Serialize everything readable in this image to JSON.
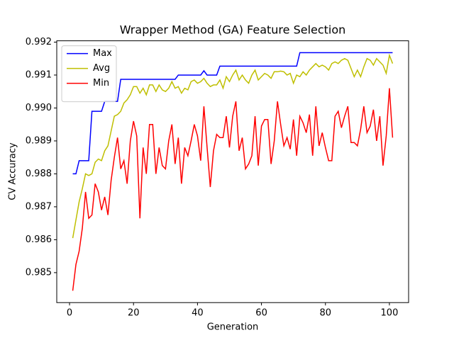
{
  "chart_data": {
    "type": "line",
    "title": "Wrapper Method (GA) Feature Selection",
    "x_label": "Generation",
    "y_label": "CV Accuracy",
    "x": [
      1,
      2,
      3,
      4,
      5,
      6,
      7,
      8,
      9,
      10,
      11,
      12,
      13,
      14,
      15,
      16,
      17,
      18,
      19,
      20,
      21,
      22,
      23,
      24,
      25,
      26,
      27,
      28,
      29,
      30,
      31,
      32,
      33,
      34,
      35,
      36,
      37,
      38,
      39,
      40,
      41,
      42,
      43,
      44,
      45,
      46,
      47,
      48,
      49,
      50,
      51,
      52,
      53,
      54,
      55,
      56,
      57,
      58,
      59,
      60,
      61,
      62,
      63,
      64,
      65,
      66,
      67,
      68,
      69,
      70,
      71,
      72,
      73,
      74,
      75,
      76,
      77,
      78,
      79,
      80,
      81,
      82,
      83,
      84,
      85,
      86,
      87,
      88,
      89,
      90,
      91,
      92,
      93,
      94,
      95,
      96,
      97,
      98,
      99,
      100,
      101
    ],
    "series": [
      {
        "name": "Max",
        "color": "#0000ff",
        "values": [
          0.988,
          0.988,
          0.9884,
          0.9884,
          0.9884,
          0.9884,
          0.9899,
          0.9899,
          0.9899,
          0.9899,
          0.9902,
          0.9902,
          0.9902,
          0.9902,
          0.9902,
          0.99087,
          0.99087,
          0.99087,
          0.99087,
          0.99087,
          0.99087,
          0.99087,
          0.99087,
          0.99087,
          0.99087,
          0.99087,
          0.99087,
          0.99087,
          0.99087,
          0.99087,
          0.99087,
          0.99087,
          0.99087,
          0.991,
          0.991,
          0.991,
          0.991,
          0.991,
          0.991,
          0.991,
          0.991,
          0.99113,
          0.991,
          0.991,
          0.991,
          0.991,
          0.99127,
          0.99127,
          0.99127,
          0.99127,
          0.99127,
          0.99127,
          0.99127,
          0.99127,
          0.99127,
          0.99127,
          0.99127,
          0.99127,
          0.99127,
          0.99127,
          0.99127,
          0.99127,
          0.99127,
          0.99127,
          0.99127,
          0.99127,
          0.99127,
          0.99127,
          0.99127,
          0.99127,
          0.99127,
          0.99168,
          0.99168,
          0.99168,
          0.99168,
          0.99168,
          0.99168,
          0.99168,
          0.99168,
          0.99168,
          0.99168,
          0.99168,
          0.99168,
          0.99168,
          0.99168,
          0.99168,
          0.99168,
          0.99168,
          0.99168,
          0.99168,
          0.99168,
          0.99168,
          0.99168,
          0.99168,
          0.99168,
          0.99168,
          0.99168,
          0.99168,
          0.99168,
          0.99168,
          0.99168
        ]
      },
      {
        "name": "Avg",
        "color": "#bfbf00",
        "values": [
          0.98605,
          0.9866,
          0.98715,
          0.98755,
          0.988,
          0.98795,
          0.988,
          0.98835,
          0.98845,
          0.9884,
          0.9887,
          0.98885,
          0.9893,
          0.98975,
          0.9898,
          0.9899,
          0.99015,
          0.99025,
          0.9904,
          0.99065,
          0.99065,
          0.99045,
          0.9906,
          0.9904,
          0.9907,
          0.9907,
          0.9905,
          0.9907,
          0.99055,
          0.9905,
          0.9906,
          0.9908,
          0.9906,
          0.99065,
          0.99045,
          0.9906,
          0.99055,
          0.9908,
          0.99085,
          0.99075,
          0.9908,
          0.9909,
          0.99075,
          0.99065,
          0.9907,
          0.9907,
          0.99085,
          0.9906,
          0.99095,
          0.9908,
          0.991,
          0.99115,
          0.99085,
          0.991,
          0.99085,
          0.99075,
          0.991,
          0.99115,
          0.99085,
          0.99095,
          0.99105,
          0.991,
          0.9909,
          0.9911,
          0.9911,
          0.99112,
          0.9911,
          0.991,
          0.99105,
          0.99075,
          0.991,
          0.99095,
          0.9911,
          0.991,
          0.99115,
          0.99125,
          0.99135,
          0.99125,
          0.9913,
          0.99125,
          0.99115,
          0.99135,
          0.9914,
          0.99135,
          0.99145,
          0.9915,
          0.99145,
          0.9912,
          0.99095,
          0.99115,
          0.99095,
          0.99125,
          0.9915,
          0.99145,
          0.9913,
          0.9915,
          0.9914,
          0.9913,
          0.99105,
          0.9916,
          0.99135
        ]
      },
      {
        "name": "Min",
        "color": "#ff0000",
        "values": [
          0.98445,
          0.98525,
          0.98565,
          0.98635,
          0.98745,
          0.98665,
          0.98675,
          0.9877,
          0.98745,
          0.9869,
          0.9873,
          0.98675,
          0.9878,
          0.9885,
          0.9891,
          0.98815,
          0.9884,
          0.9877,
          0.989,
          0.9896,
          0.98915,
          0.98665,
          0.9888,
          0.988,
          0.9895,
          0.9895,
          0.988,
          0.9888,
          0.98825,
          0.98815,
          0.989,
          0.9895,
          0.9883,
          0.9891,
          0.9877,
          0.9888,
          0.98855,
          0.989,
          0.9895,
          0.98915,
          0.9884,
          0.99005,
          0.9888,
          0.9876,
          0.9887,
          0.9892,
          0.9891,
          0.9891,
          0.98975,
          0.9888,
          0.98975,
          0.9902,
          0.9887,
          0.9891,
          0.98815,
          0.9883,
          0.98855,
          0.98975,
          0.98825,
          0.98945,
          0.98965,
          0.98965,
          0.9883,
          0.989,
          0.9902,
          0.9895,
          0.98885,
          0.9891,
          0.98875,
          0.98965,
          0.98855,
          0.98975,
          0.98955,
          0.98925,
          0.9898,
          0.98855,
          0.99005,
          0.98885,
          0.98925,
          0.9888,
          0.9884,
          0.9884,
          0.98975,
          0.9899,
          0.9894,
          0.98975,
          0.99005,
          0.98895,
          0.98895,
          0.98885,
          0.98935,
          0.99005,
          0.98925,
          0.98945,
          0.98995,
          0.989,
          0.98975,
          0.98825,
          0.98915,
          0.9906,
          0.9891
        ]
      }
    ],
    "xlim": [
      -4,
      106
    ],
    "xticks": [
      0,
      20,
      40,
      60,
      80,
      100
    ],
    "ylim": [
      0.98409,
      0.99204
    ],
    "yticks": [
      0.985,
      0.986,
      0.987,
      0.988,
      0.989,
      {
        "value": 0.99,
        "label": "0.990"
      },
      0.991,
      0.992
    ],
    "legend": "upper left"
  }
}
